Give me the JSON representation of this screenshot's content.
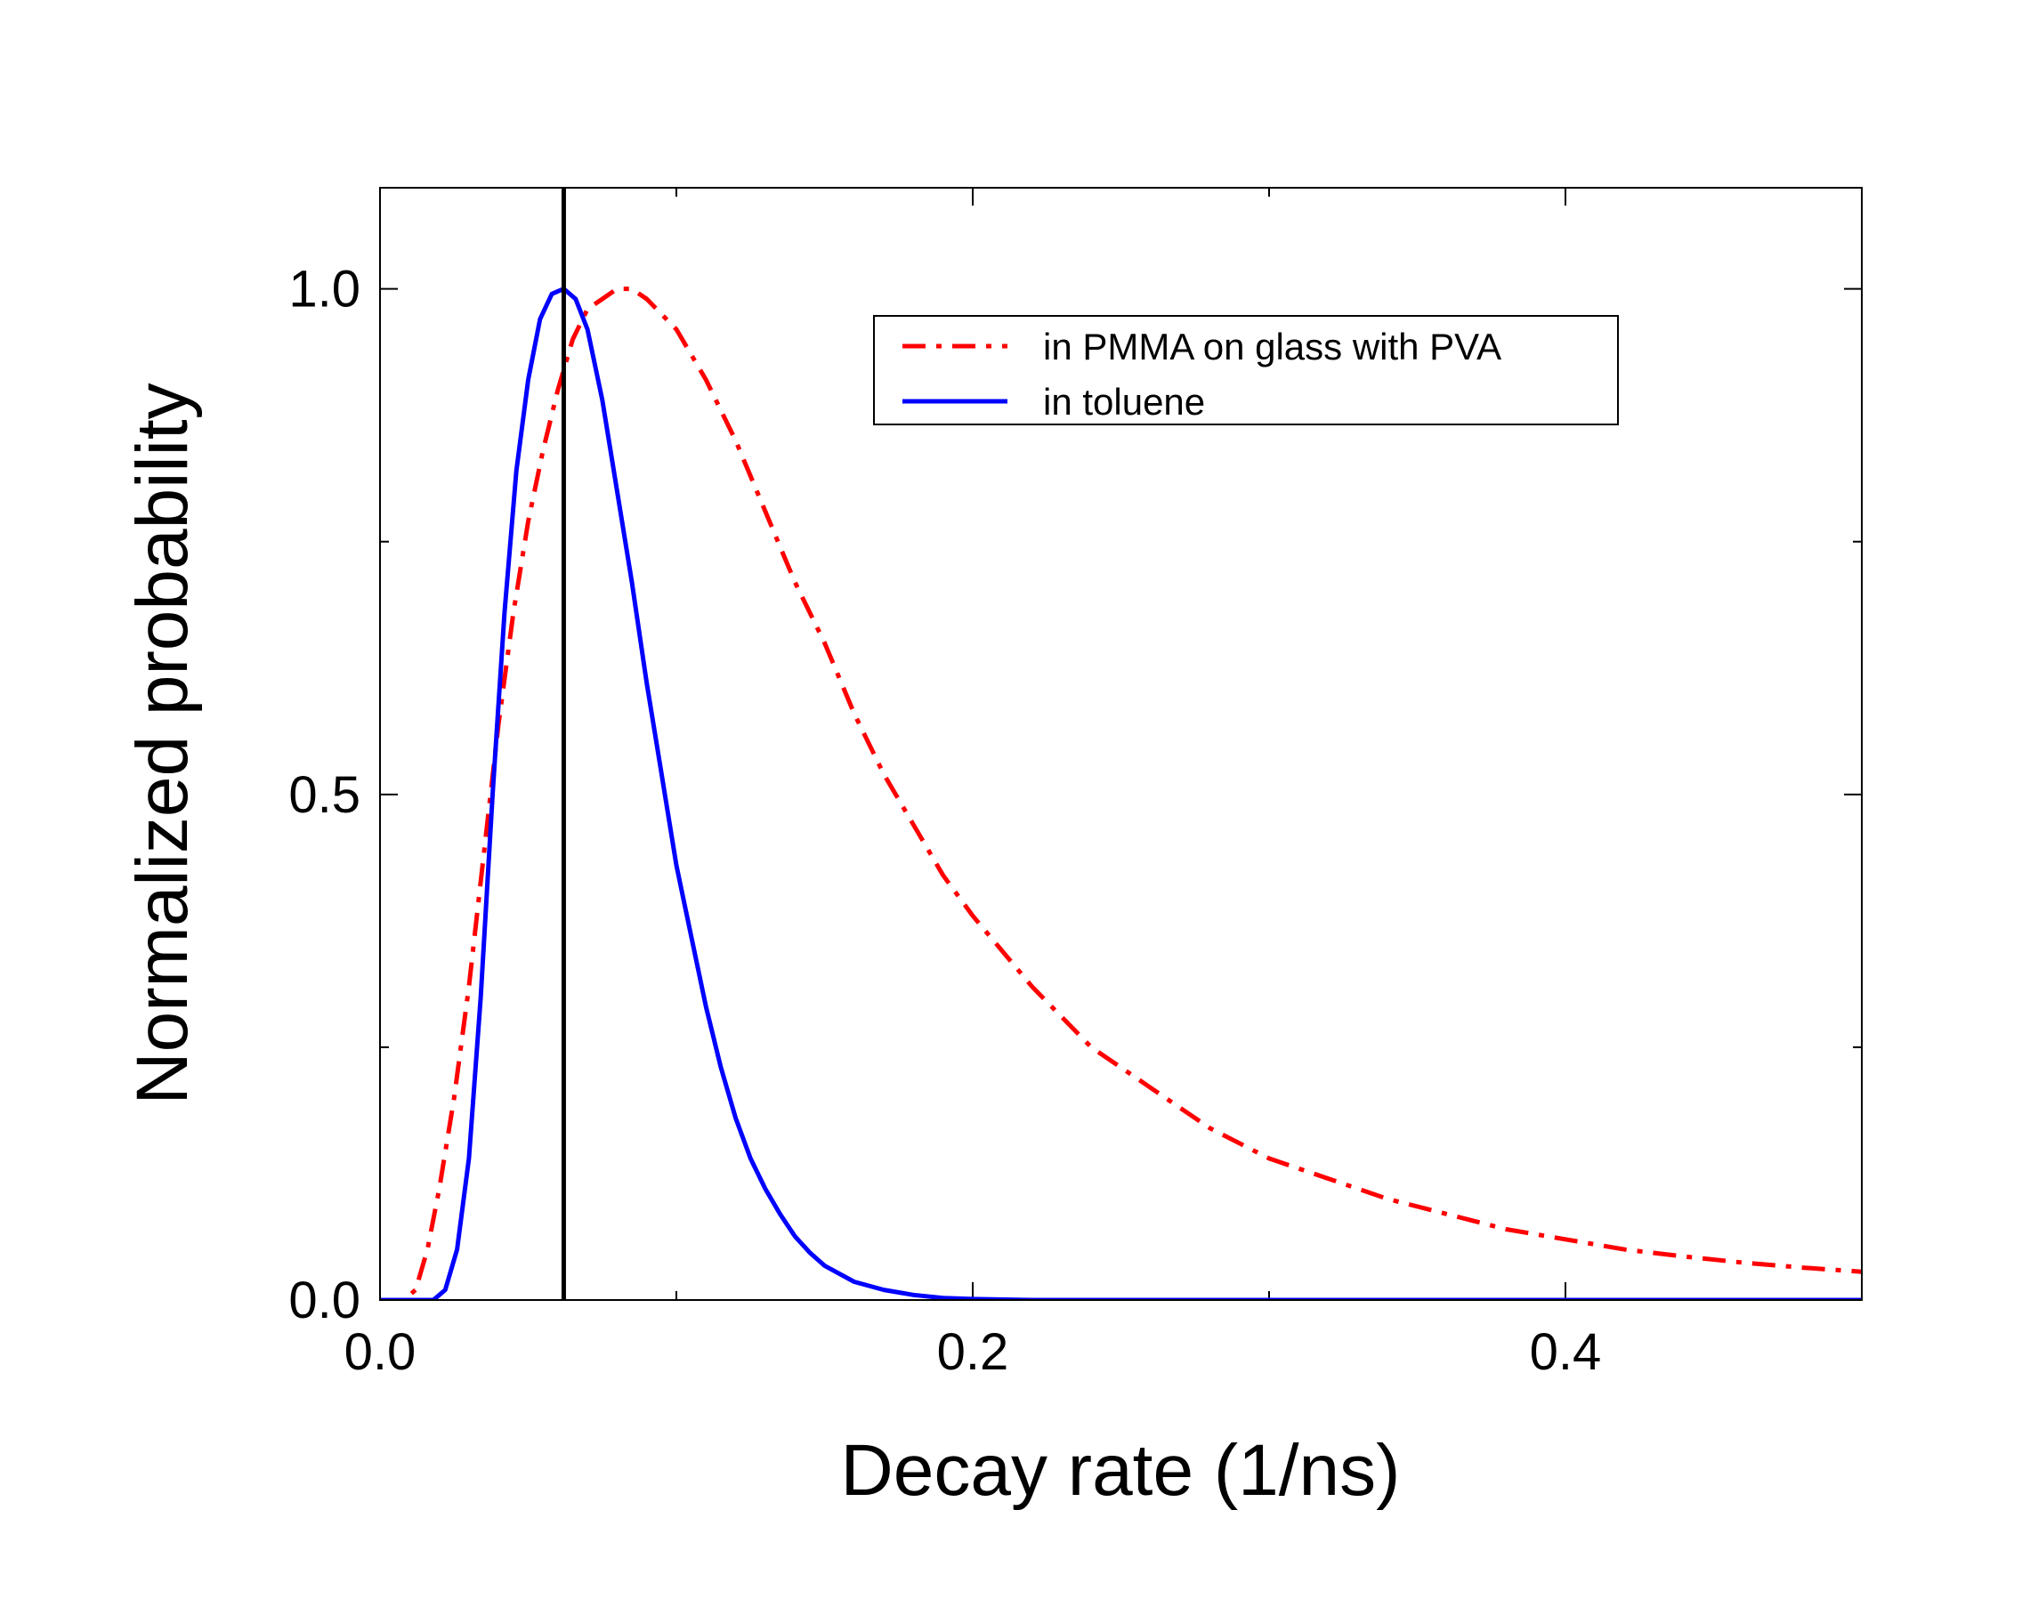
{
  "chart_data": {
    "type": "line",
    "title": "",
    "xlabel": "Decay rate (1/ns)",
    "ylabel": "Normalized probability",
    "xlim": [
      0.0,
      0.5
    ],
    "ylim": [
      0.0,
      1.1
    ],
    "x_major_ticks": [
      0.0,
      0.2,
      0.4
    ],
    "x_tick_labels": [
      "0.0",
      "0.2",
      "0.4"
    ],
    "x_minor_ticks": [
      0.1,
      0.3,
      0.5
    ],
    "y_major_ticks": [
      0.0,
      0.5,
      1.0
    ],
    "y_tick_labels": [
      "0.0",
      "0.5",
      "1.0"
    ],
    "y_minor_ticks": [
      0.25,
      0.75
    ],
    "grid": false,
    "legend_position": "top-right",
    "vertical_line": {
      "x": 0.062,
      "color": "#000000",
      "style": "solid"
    },
    "series": [
      {
        "name": "in PMMA on glass with PVA",
        "color": "#ff0000",
        "style": "dash-dot",
        "points": [
          [
            0.0,
            0.0
          ],
          [
            0.008,
            0.0
          ],
          [
            0.012,
            0.01
          ],
          [
            0.016,
            0.05
          ],
          [
            0.02,
            0.11
          ],
          [
            0.025,
            0.2
          ],
          [
            0.03,
            0.31
          ],
          [
            0.035,
            0.44
          ],
          [
            0.04,
            0.57
          ],
          [
            0.045,
            0.68
          ],
          [
            0.05,
            0.77
          ],
          [
            0.055,
            0.84
          ],
          [
            0.06,
            0.9
          ],
          [
            0.065,
            0.95
          ],
          [
            0.07,
            0.98
          ],
          [
            0.075,
            0.99
          ],
          [
            0.08,
            1.0
          ],
          [
            0.085,
            1.0
          ],
          [
            0.09,
            0.99
          ],
          [
            0.1,
            0.96
          ],
          [
            0.11,
            0.91
          ],
          [
            0.12,
            0.85
          ],
          [
            0.13,
            0.78
          ],
          [
            0.14,
            0.71
          ],
          [
            0.15,
            0.65
          ],
          [
            0.16,
            0.58
          ],
          [
            0.17,
            0.52
          ],
          [
            0.18,
            0.47
          ],
          [
            0.19,
            0.42
          ],
          [
            0.2,
            0.38
          ],
          [
            0.22,
            0.31
          ],
          [
            0.24,
            0.25
          ],
          [
            0.26,
            0.21
          ],
          [
            0.28,
            0.17
          ],
          [
            0.3,
            0.14
          ],
          [
            0.32,
            0.12
          ],
          [
            0.34,
            0.1
          ],
          [
            0.36,
            0.085
          ],
          [
            0.38,
            0.07
          ],
          [
            0.4,
            0.06
          ],
          [
            0.42,
            0.05
          ],
          [
            0.44,
            0.043
          ],
          [
            0.46,
            0.037
          ],
          [
            0.48,
            0.032
          ],
          [
            0.5,
            0.028
          ]
        ]
      },
      {
        "name": "in toluene",
        "color": "#0000ff",
        "style": "solid",
        "points": [
          [
            0.0,
            0.0
          ],
          [
            0.018,
            0.0
          ],
          [
            0.022,
            0.01
          ],
          [
            0.026,
            0.05
          ],
          [
            0.03,
            0.14
          ],
          [
            0.034,
            0.3
          ],
          [
            0.038,
            0.5
          ],
          [
            0.042,
            0.68
          ],
          [
            0.046,
            0.82
          ],
          [
            0.05,
            0.91
          ],
          [
            0.054,
            0.97
          ],
          [
            0.058,
            0.995
          ],
          [
            0.062,
            1.0
          ],
          [
            0.066,
            0.99
          ],
          [
            0.07,
            0.96
          ],
          [
            0.075,
            0.89
          ],
          [
            0.08,
            0.8
          ],
          [
            0.085,
            0.71
          ],
          [
            0.09,
            0.61
          ],
          [
            0.095,
            0.52
          ],
          [
            0.1,
            0.43
          ],
          [
            0.105,
            0.36
          ],
          [
            0.11,
            0.29
          ],
          [
            0.115,
            0.23
          ],
          [
            0.12,
            0.18
          ],
          [
            0.125,
            0.14
          ],
          [
            0.13,
            0.11
          ],
          [
            0.135,
            0.085
          ],
          [
            0.14,
            0.063
          ],
          [
            0.145,
            0.047
          ],
          [
            0.15,
            0.034
          ],
          [
            0.16,
            0.018
          ],
          [
            0.17,
            0.01
          ],
          [
            0.18,
            0.005
          ],
          [
            0.19,
            0.002
          ],
          [
            0.2,
            0.001
          ],
          [
            0.22,
            0.0
          ],
          [
            0.3,
            0.0
          ],
          [
            0.4,
            0.0
          ],
          [
            0.5,
            0.0
          ]
        ]
      }
    ]
  }
}
